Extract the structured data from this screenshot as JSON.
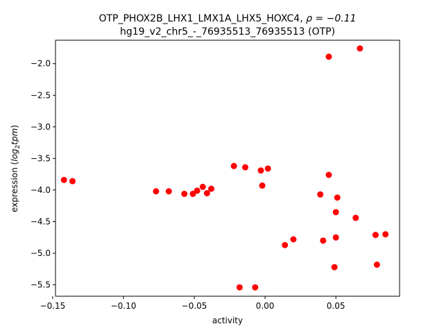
{
  "chart_data": {
    "type": "scatter",
    "title_line1_text": "OTP_PHOX2B_LHX1_LMX1A_LHX5_HOXC4, ",
    "title_line1_math": "ρ = −0.11",
    "title_line2": "hg19_v2_chr5_-_76935513_76935513 (OTP)",
    "xlabel": "activity",
    "ylabel_prefix": "expression (",
    "ylabel_log": "log",
    "ylabel_sub": "2",
    "ylabel_tpm": "tpm",
    "ylabel_suffix": ")",
    "xlim": [
      -0.148,
      0.095
    ],
    "ylim": [
      -5.68,
      -1.63
    ],
    "xticks": [
      {
        "value": -0.15,
        "label": "−0.15"
      },
      {
        "value": -0.1,
        "label": "−0.10"
      },
      {
        "value": -0.05,
        "label": "−0.05"
      },
      {
        "value": 0.0,
        "label": "0.00"
      },
      {
        "value": 0.05,
        "label": "0.05"
      }
    ],
    "yticks": [
      {
        "value": -2.0,
        "label": "−2.0"
      },
      {
        "value": -2.5,
        "label": "−2.5"
      },
      {
        "value": -3.0,
        "label": "−3.0"
      },
      {
        "value": -3.5,
        "label": "−3.5"
      },
      {
        "value": -4.0,
        "label": "−4.0"
      },
      {
        "value": -4.5,
        "label": "−4.5"
      },
      {
        "value": -5.0,
        "label": "−5.0"
      },
      {
        "value": -5.5,
        "label": "−5.5"
      }
    ],
    "marker_color": "#ff0000",
    "points": [
      {
        "x": -0.142,
        "y": -3.84
      },
      {
        "x": -0.136,
        "y": -3.86
      },
      {
        "x": -0.077,
        "y": -4.02
      },
      {
        "x": -0.068,
        "y": -4.02
      },
      {
        "x": -0.057,
        "y": -4.06
      },
      {
        "x": -0.051,
        "y": -4.06
      },
      {
        "x": -0.048,
        "y": -4.01
      },
      {
        "x": -0.044,
        "y": -3.95
      },
      {
        "x": -0.041,
        "y": -4.05
      },
      {
        "x": -0.038,
        "y": -3.98
      },
      {
        "x": -0.022,
        "y": -3.62
      },
      {
        "x": -0.014,
        "y": -3.64
      },
      {
        "x": -0.003,
        "y": -3.69
      },
      {
        "x": -0.002,
        "y": -3.93
      },
      {
        "x": 0.002,
        "y": -3.66
      },
      {
        "x": -0.018,
        "y": -5.54
      },
      {
        "x": -0.007,
        "y": -5.54
      },
      {
        "x": 0.014,
        "y": -4.87
      },
      {
        "x": 0.02,
        "y": -4.78
      },
      {
        "x": 0.039,
        "y": -4.07
      },
      {
        "x": 0.041,
        "y": -4.8
      },
      {
        "x": 0.045,
        "y": -3.76
      },
      {
        "x": 0.045,
        "y": -1.89
      },
      {
        "x": 0.049,
        "y": -5.22
      },
      {
        "x": 0.05,
        "y": -4.75
      },
      {
        "x": 0.05,
        "y": -4.35
      },
      {
        "x": 0.051,
        "y": -4.12
      },
      {
        "x": 0.064,
        "y": -4.44
      },
      {
        "x": 0.067,
        "y": -1.76
      },
      {
        "x": 0.078,
        "y": -4.71
      },
      {
        "x": 0.079,
        "y": -5.18
      },
      {
        "x": 0.085,
        "y": -4.7
      }
    ]
  }
}
